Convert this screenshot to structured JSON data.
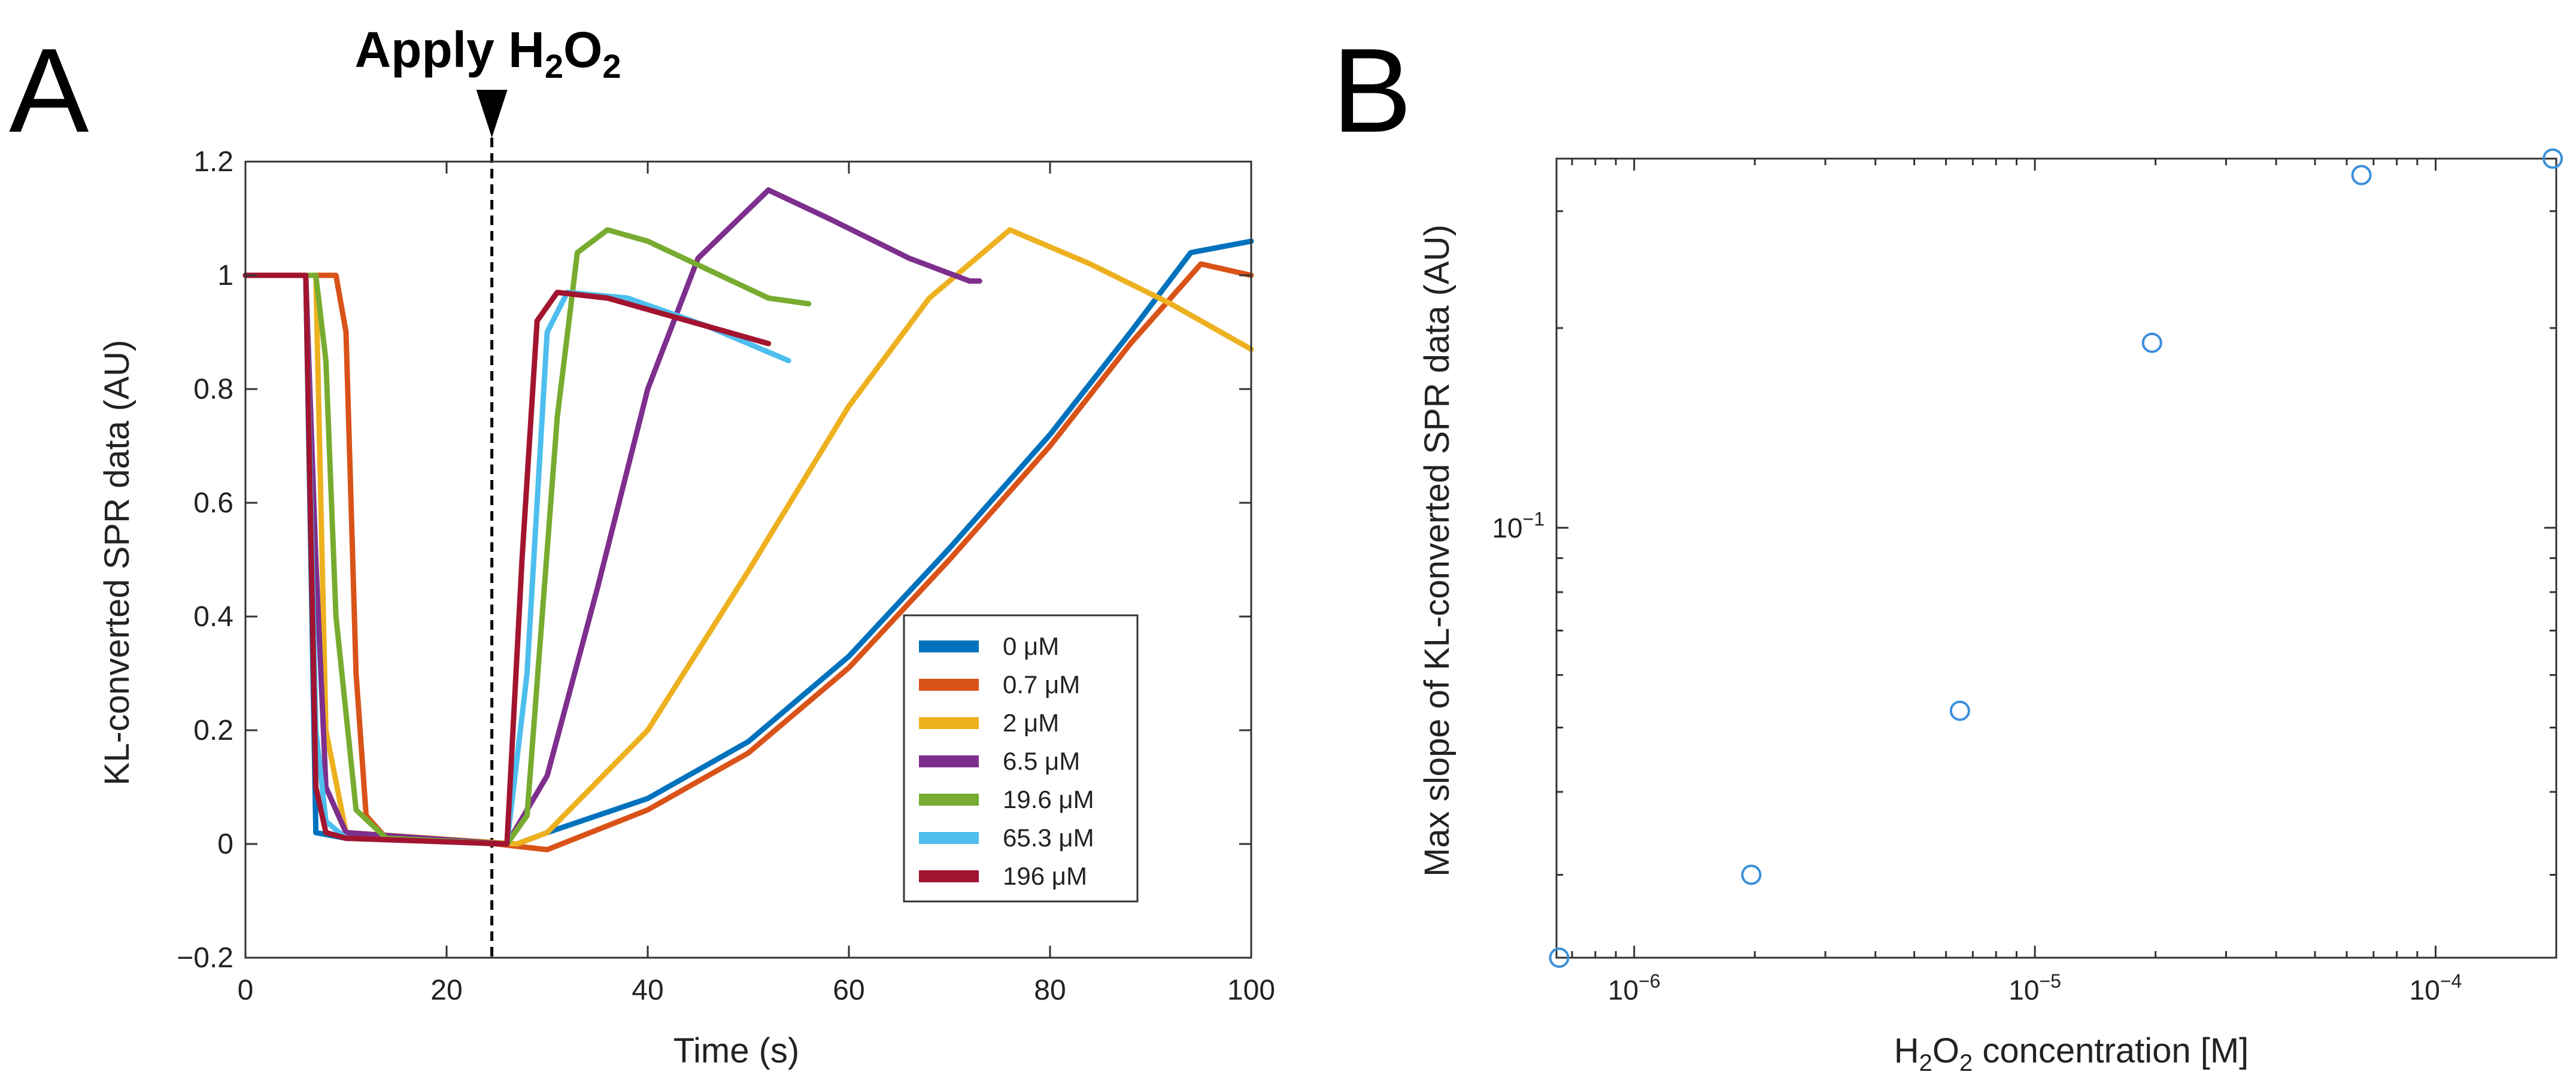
{
  "figure": {
    "panel_a_label": "A",
    "panel_b_label": "B",
    "annotation": {
      "text": "Apply",
      "formula_base1": "H",
      "formula_sub1": "2",
      "formula_base2": "O",
      "formula_sub2": "2",
      "x_value": 24.5
    }
  },
  "chart_data": [
    {
      "type": "line",
      "xlabel": "Time (s)",
      "ylabel": "KL-converted SPR data (AU)",
      "xlim": [
        0,
        100
      ],
      "ylim": [
        -0.2,
        1.2
      ],
      "x_ticks": [
        0,
        20,
        40,
        60,
        80,
        100
      ],
      "x_tick_labels": [
        "0",
        "20",
        "40",
        "60",
        "80",
        "100"
      ],
      "y_ticks": [
        -0.2,
        0,
        0.2,
        0.4,
        0.6,
        0.8,
        1,
        1.2
      ],
      "y_tick_labels": [
        "−0.2",
        "0",
        "0.2",
        "0.4",
        "0.6",
        "0.8",
        "1",
        "1.2"
      ],
      "grid": false,
      "legend_position": "lower-right",
      "series": [
        {
          "name": "0 μM",
          "color": "#0072BD",
          "points": [
            [
              0,
              1
            ],
            [
              6,
              1
            ],
            [
              7,
              0.02
            ],
            [
              10,
              0.01
            ],
            [
              27,
              0
            ],
            [
              30,
              0.02
            ],
            [
              40,
              0.08
            ],
            [
              50,
              0.18
            ],
            [
              60,
              0.33
            ],
            [
              70,
              0.52
            ],
            [
              80,
              0.72
            ],
            [
              88,
              0.9
            ],
            [
              94,
              1.04
            ],
            [
              100,
              1.06
            ]
          ]
        },
        {
          "name": "0.7 μM",
          "color": "#D95319",
          "points": [
            [
              0,
              1
            ],
            [
              9,
              1
            ],
            [
              10,
              0.9
            ],
            [
              11,
              0.3
            ],
            [
              12,
              0.05
            ],
            [
              14,
              0.01
            ],
            [
              25,
              0
            ],
            [
              30,
              -0.01
            ],
            [
              40,
              0.06
            ],
            [
              50,
              0.16
            ],
            [
              60,
              0.31
            ],
            [
              70,
              0.5
            ],
            [
              80,
              0.7
            ],
            [
              88,
              0.88
            ],
            [
              95,
              1.02
            ],
            [
              100,
              1.0
            ]
          ]
        },
        {
          "name": "2 μM",
          "color": "#EDB120",
          "points": [
            [
              0,
              1
            ],
            [
              7,
              1
            ],
            [
              8,
              0.2
            ],
            [
              10,
              0.02
            ],
            [
              27,
              0
            ],
            [
              30,
              0.02
            ],
            [
              40,
              0.2
            ],
            [
              50,
              0.48
            ],
            [
              60,
              0.77
            ],
            [
              68,
              0.96
            ],
            [
              76,
              1.08
            ],
            [
              84,
              1.02
            ],
            [
              92,
              0.95
            ],
            [
              100,
              0.87
            ]
          ]
        },
        {
          "name": "6.5 μM",
          "color": "#7E2F8E",
          "points": [
            [
              0,
              1
            ],
            [
              6,
              1
            ],
            [
              7,
              0.5
            ],
            [
              8,
              0.1
            ],
            [
              10,
              0.02
            ],
            [
              26,
              0
            ],
            [
              30,
              0.12
            ],
            [
              35,
              0.45
            ],
            [
              40,
              0.8
            ],
            [
              45,
              1.03
            ],
            [
              52,
              1.15
            ],
            [
              58,
              1.1
            ],
            [
              66,
              1.03
            ],
            [
              72,
              0.99
            ],
            [
              73,
              0.99
            ]
          ]
        },
        {
          "name": "19.6 μM",
          "color": "#77AC30",
          "points": [
            [
              0,
              1
            ],
            [
              7,
              1
            ],
            [
              8,
              0.85
            ],
            [
              9,
              0.4
            ],
            [
              11,
              0.06
            ],
            [
              14,
              0.01
            ],
            [
              26,
              0
            ],
            [
              28,
              0.05
            ],
            [
              31,
              0.75
            ],
            [
              33,
              1.04
            ],
            [
              36,
              1.08
            ],
            [
              40,
              1.06
            ],
            [
              46,
              1.01
            ],
            [
              52,
              0.96
            ],
            [
              56,
              0.95
            ]
          ]
        },
        {
          "name": "65.3 μM",
          "color": "#4DBEEE",
          "points": [
            [
              0,
              1
            ],
            [
              6,
              1
            ],
            [
              7,
              0.2
            ],
            [
              8,
              0.04
            ],
            [
              10,
              0.01
            ],
            [
              26,
              0
            ],
            [
              28,
              0.3
            ],
            [
              30,
              0.9
            ],
            [
              32,
              0.97
            ],
            [
              38,
              0.96
            ],
            [
              46,
              0.91
            ],
            [
              54,
              0.85
            ]
          ]
        },
        {
          "name": "196 μM",
          "color": "#A2142F",
          "points": [
            [
              0,
              1
            ],
            [
              6,
              1
            ],
            [
              7,
              0.1
            ],
            [
              8,
              0.02
            ],
            [
              10,
              0.01
            ],
            [
              26,
              0
            ],
            [
              27.5,
              0.5
            ],
            [
              29,
              0.92
            ],
            [
              31,
              0.97
            ],
            [
              36,
              0.96
            ],
            [
              44,
              0.92
            ],
            [
              52,
              0.88
            ]
          ]
        }
      ]
    },
    {
      "type": "scatter",
      "xlabel_base": "H",
      "xlabel_sub1": "2",
      "xlabel_mid": "O",
      "xlabel_sub2": "2",
      "xlabel_rest": " concentration [M]",
      "ylabel": "Max slope of KL-converted SPR data (AU)",
      "x_scale": "log",
      "y_scale": "log",
      "xlim": [
        6.4e-07,
        0.0002
      ],
      "ylim": [
        0.0225,
        0.36
      ],
      "x_ticks": [
        1e-06,
        1e-05,
        0.0001
      ],
      "x_tick_labels": [
        {
          "base": "10",
          "exp": "−6"
        },
        {
          "base": "10",
          "exp": "−5"
        },
        {
          "base": "10",
          "exp": "−4"
        }
      ],
      "y_ticks": [
        0.1
      ],
      "y_tick_labels": [
        {
          "base": "10",
          "exp": "−1"
        }
      ],
      "marker_color": "#3A8FD9",
      "points": [
        [
          6.5e-07,
          0.0225
        ],
        [
          1.96e-06,
          0.03
        ],
        [
          6.5e-06,
          0.053
        ],
        [
          1.96e-05,
          0.19
        ],
        [
          6.53e-05,
          0.34
        ],
        [
          0.000196,
          0.36
        ]
      ]
    }
  ]
}
